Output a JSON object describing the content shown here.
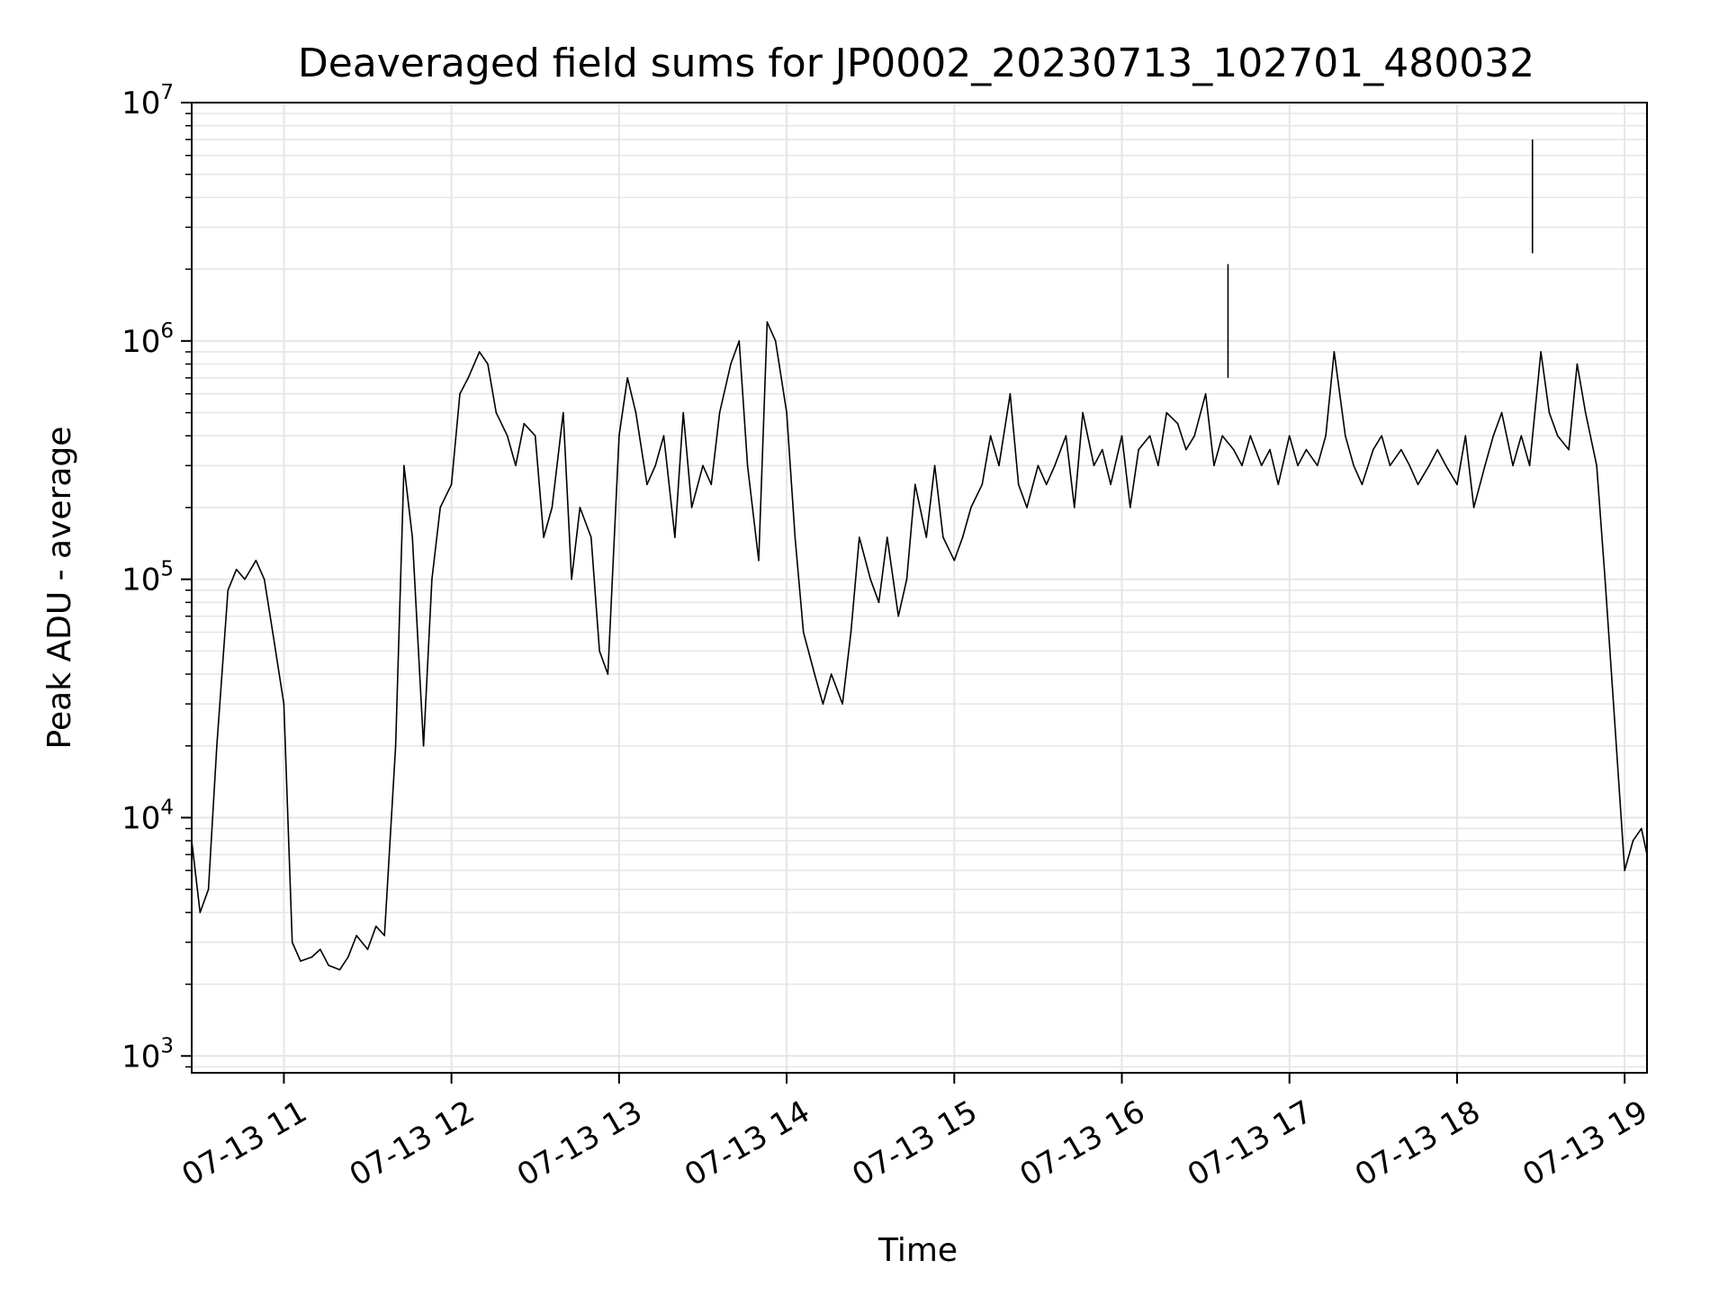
{
  "chart_data": {
    "type": "line",
    "title": "Deaveraged field sums for JP0002_20230713_102701_480032",
    "xlabel": "Time",
    "ylabel": "Peak ADU - average",
    "yscale": "log",
    "ylim": [
      850,
      10000000
    ],
    "xlim": [
      "2023-07-13 10:27:01",
      "2023-07-13 19:08:00"
    ],
    "grid": true,
    "x_ticks": [
      {
        "value": "2023-07-13 11:00",
        "label": "07-13 11"
      },
      {
        "value": "2023-07-13 12:00",
        "label": "07-13 12"
      },
      {
        "value": "2023-07-13 13:00",
        "label": "07-13 13"
      },
      {
        "value": "2023-07-13 14:00",
        "label": "07-13 14"
      },
      {
        "value": "2023-07-13 15:00",
        "label": "07-13 15"
      },
      {
        "value": "2023-07-13 16:00",
        "label": "07-13 16"
      },
      {
        "value": "2023-07-13 17:00",
        "label": "07-13 17"
      },
      {
        "value": "2023-07-13 18:00",
        "label": "07-13 18"
      },
      {
        "value": "2023-07-13 19:00",
        "label": "07-13 19"
      }
    ],
    "y_ticks": [
      {
        "value": 1000,
        "base": "10",
        "exp": "3"
      },
      {
        "value": 10000,
        "base": "10",
        "exp": "4"
      },
      {
        "value": 100000,
        "base": "10",
        "exp": "5"
      },
      {
        "value": 1000000,
        "base": "10",
        "exp": "6"
      },
      {
        "value": 10000000,
        "base": "10",
        "exp": "7"
      }
    ],
    "series": [
      {
        "color": "#000000",
        "x": [
          "10:27",
          "10:30",
          "10:33",
          "10:36",
          "10:40",
          "10:43",
          "10:46",
          "10:50",
          "10:53",
          "10:56",
          "11:00",
          "11:03",
          "11:06",
          "11:10",
          "11:13",
          "11:16",
          "11:20",
          "11:23",
          "11:26",
          "11:30",
          "11:33",
          "11:36",
          "11:40",
          "11:43",
          "11:46",
          "11:50",
          "11:53",
          "11:56",
          "12:00",
          "12:03",
          "12:06",
          "12:10",
          "12:13",
          "12:16",
          "12:20",
          "12:23",
          "12:26",
          "12:30",
          "12:33",
          "12:36",
          "12:40",
          "12:43",
          "12:46",
          "12:50",
          "12:53",
          "12:56",
          "13:00",
          "13:03",
          "13:06",
          "13:10",
          "13:13",
          "13:16",
          "13:20",
          "13:23",
          "13:26",
          "13:30",
          "13:33",
          "13:36",
          "13:40",
          "13:43",
          "13:46",
          "13:50",
          "13:53",
          "13:56",
          "14:00",
          "14:03",
          "14:06",
          "14:10",
          "14:13",
          "14:16",
          "14:20",
          "14:23",
          "14:26",
          "14:30",
          "14:33",
          "14:36",
          "14:40",
          "14:43",
          "14:46",
          "14:50",
          "14:53",
          "14:56",
          "15:00",
          "15:03",
          "15:06",
          "15:10",
          "15:13",
          "15:16",
          "15:20",
          "15:23",
          "15:26",
          "15:30",
          "15:33",
          "15:36",
          "15:40",
          "15:43",
          "15:46",
          "15:50",
          "15:53",
          "15:56",
          "16:00",
          "16:03",
          "16:06",
          "16:10",
          "16:13",
          "16:16",
          "16:20",
          "16:23",
          "16:26",
          "16:30",
          "16:33",
          "16:36",
          "16:40",
          "16:43",
          "16:46",
          "16:50",
          "16:53",
          "16:56",
          "17:00",
          "17:03",
          "17:06",
          "17:10",
          "17:13",
          "17:16",
          "17:20",
          "17:23",
          "17:26",
          "17:30",
          "17:33",
          "17:36",
          "17:40",
          "17:43",
          "17:46",
          "17:50",
          "17:53",
          "17:56",
          "18:00",
          "18:03",
          "18:06",
          "18:10",
          "18:13",
          "18:16",
          "18:20",
          "18:23",
          "18:26",
          "18:30",
          "18:33",
          "18:36",
          "18:40",
          "18:43",
          "18:46",
          "18:50",
          "18:53",
          "18:56",
          "19:00",
          "19:03",
          "19:06",
          "19:08"
        ],
        "values": [
          8000,
          4000,
          5000,
          20000,
          90000,
          110000,
          100000,
          120000,
          100000,
          60000,
          30000,
          3000,
          2500,
          2600,
          2800,
          2400,
          2300,
          2600,
          3200,
          2800,
          3500,
          3200,
          20000,
          300000,
          150000,
          20000,
          100000,
          200000,
          250000,
          600000,
          700000,
          900000,
          800000,
          500000,
          400000,
          300000,
          450000,
          400000,
          150000,
          200000,
          500000,
          100000,
          200000,
          150000,
          50000,
          40000,
          400000,
          700000,
          500000,
          250000,
          300000,
          400000,
          150000,
          500000,
          200000,
          300000,
          250000,
          500000,
          800000,
          1000000,
          300000,
          120000,
          1200000,
          1000000,
          500000,
          150000,
          60000,
          40000,
          30000,
          40000,
          30000,
          60000,
          150000,
          100000,
          80000,
          150000,
          70000,
          100000,
          250000,
          150000,
          300000,
          150000,
          120000,
          150000,
          200000,
          250000,
          400000,
          300000,
          600000,
          250000,
          200000,
          300000,
          250000,
          300000,
          400000,
          200000,
          500000,
          300000,
          350000,
          250000,
          400000,
          200000,
          350000,
          400000,
          300000,
          500000,
          450000,
          350000,
          400000,
          600000,
          300000,
          400000,
          350000,
          300000,
          400000,
          300000,
          350000,
          250000,
          400000,
          300000,
          350000,
          300000,
          400000,
          900000,
          400000,
          300000,
          250000,
          350000,
          400000,
          300000,
          350000,
          300000,
          250000,
          300000,
          350000,
          300000,
          250000,
          400000,
          200000,
          300000,
          400000,
          500000,
          300000,
          400000,
          300000,
          900000,
          500000,
          400000,
          350000,
          800000,
          500000,
          300000,
          100000,
          30000,
          6000,
          8000,
          9000,
          7000
        ]
      }
    ],
    "annotations": [
      {
        "x": "18:27",
        "y": 7000000,
        "note": "spike"
      },
      {
        "x": "16:38",
        "y": 2100000,
        "note": "spike"
      }
    ]
  }
}
